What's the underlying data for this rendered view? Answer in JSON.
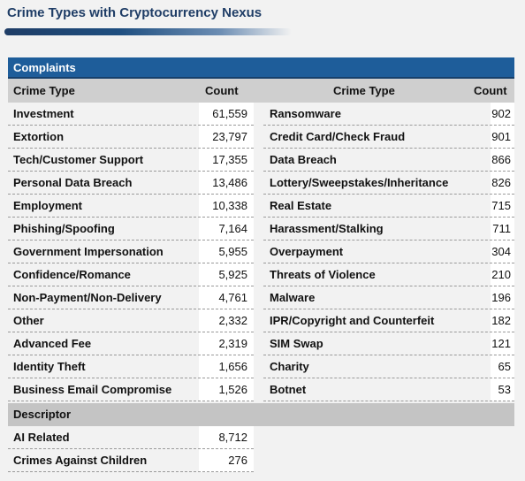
{
  "title": "Crime Types with Cryptocurrency Nexus",
  "complaints": {
    "section_label": "Complaints",
    "headers": [
      "Crime Type",
      "Count",
      "Crime Type",
      "Count"
    ],
    "rows": [
      [
        "Investment",
        "61,559",
        "Ransomware",
        "902"
      ],
      [
        "Extortion",
        "23,797",
        "Credit Card/Check Fraud",
        "901"
      ],
      [
        "Tech/Customer Support",
        "17,355",
        "Data Breach",
        "866"
      ],
      [
        "Personal Data Breach",
        "13,486",
        "Lottery/Sweepstakes/Inheritance",
        "826"
      ],
      [
        "Employment",
        "10,338",
        "Real Estate",
        "715"
      ],
      [
        "Phishing/Spoofing",
        "7,164",
        "Harassment/Stalking",
        "711"
      ],
      [
        "Government Impersonation",
        "5,955",
        "Overpayment",
        "304"
      ],
      [
        "Confidence/Romance",
        "5,925",
        "Threats of Violence",
        "210"
      ],
      [
        "Non-Payment/Non-Delivery",
        "4,761",
        "Malware",
        "196"
      ],
      [
        "Other",
        "2,332",
        "IPR/Copyright and Counterfeit",
        "182"
      ],
      [
        "Advanced Fee",
        "2,319",
        "SIM Swap",
        "121"
      ],
      [
        "Identity Theft",
        "1,656",
        "Charity",
        "65"
      ],
      [
        "Business Email Compromise",
        "1,526",
        "Botnet",
        "53"
      ]
    ]
  },
  "descriptor": {
    "section_label": "Descriptor",
    "rows": [
      [
        "AI Related",
        "8,712"
      ],
      [
        "Crimes Against Children",
        "276"
      ]
    ]
  }
}
